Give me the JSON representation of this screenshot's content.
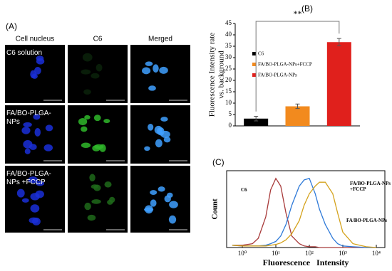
{
  "panel_a": {
    "label": "(A)",
    "columns": [
      "Cell nucleus",
      "C6",
      "Merged"
    ],
    "rows": [
      "C6 solution",
      "FA/BO-PLGA-NPs",
      "FA/BO-PLGA-NPs +FCCP"
    ]
  },
  "chart_data": [
    {
      "type": "bar",
      "panel": "(B)",
      "ylabel": [
        "Fluorescence Intensity rate",
        "vs. background"
      ],
      "categories": [
        "C6",
        "FA/BO-PLGA-NPs+FCCP",
        "FA/BO-PLGA-NPs"
      ],
      "values": [
        3.2,
        8.6,
        36.8
      ],
      "errors": [
        1.0,
        1.0,
        1.6
      ],
      "colors": [
        "#000000",
        "#f28a1e",
        "#e0201c"
      ],
      "ylim": [
        0,
        45
      ],
      "yticks": [
        0,
        5,
        10,
        15,
        20,
        25,
        30,
        35,
        40,
        45
      ],
      "legend": "upper left",
      "annotation": "**"
    },
    {
      "type": "line",
      "panel": "(C)",
      "xlabel": "Fluorescence   Intensity",
      "ylabel": "Count",
      "xscale": "log",
      "x": [
        0.5,
        1,
        2,
        3,
        5,
        7,
        10,
        14,
        20,
        30,
        50,
        70,
        100,
        150,
        200,
        300,
        500,
        700,
        1000,
        2000,
        5000,
        10000
      ],
      "series": [
        {
          "name": "C6",
          "color": "#a83a3a",
          "values": [
            3,
            3,
            5,
            12,
            40,
            75,
            90,
            80,
            45,
            15,
            5,
            2,
            1,
            1,
            0,
            0,
            0,
            0,
            0,
            0,
            0,
            0
          ]
        },
        {
          "name": "FA/BO-PLGA-NPs +FCCP",
          "color": "#2f7ad8",
          "values": [
            3,
            2,
            2,
            2,
            3,
            5,
            8,
            15,
            30,
            55,
            80,
            88,
            90,
            70,
            50,
            30,
            12,
            5,
            2,
            1,
            0,
            0
          ]
        },
        {
          "name": "FA/BO-PLGA-NPs",
          "color": "#d4a21c",
          "values": [
            3,
            2,
            2,
            2,
            2,
            3,
            4,
            6,
            10,
            18,
            35,
            55,
            70,
            80,
            85,
            85,
            70,
            45,
            20,
            5,
            1,
            0
          ]
        }
      ],
      "xlim": [
        0.34,
        18000
      ],
      "ylim": [
        0,
        100
      ],
      "xticks": [
        {
          "value": 1,
          "label": "10⁰"
        },
        {
          "value": 10,
          "label": "10¹"
        },
        {
          "value": 100,
          "label": "10²"
        },
        {
          "value": 1000,
          "label": "10³"
        },
        {
          "value": 10000,
          "label": "10⁴"
        }
      ]
    }
  ]
}
